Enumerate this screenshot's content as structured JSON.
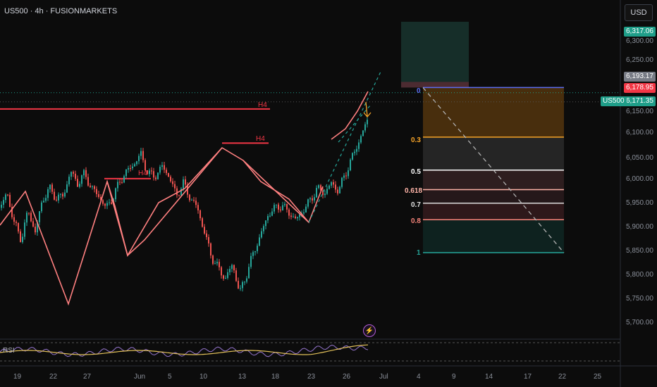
{
  "header": {
    "title": "US500 · 4h · FUSIONMARKETS"
  },
  "currency_button": {
    "label": "USD"
  },
  "price_tags": [
    {
      "label": "6,317.06",
      "bg": "#1f9e89"
    },
    {
      "label": "6,193.17",
      "bg": "#777b85"
    },
    {
      "label": "6,178.95",
      "bg": "#f23645"
    },
    {
      "label": "6,171.35",
      "bg": "#1f9e89"
    }
  ],
  "symbol_tag": {
    "label": "US500",
    "bg": "#1f9e89"
  },
  "y_axis": {
    "ticks": [
      "6,300.00",
      "6,250.00",
      "6,150.00",
      "6,100.00",
      "6,050.00",
      "6,000.00",
      "5,950.00",
      "5,900.00",
      "5,850.00",
      "5,800.00",
      "5,750.00",
      "5,700.00"
    ]
  },
  "x_axis": {
    "ticks": [
      "19",
      "22",
      "27",
      "Jun",
      "5",
      "10",
      "13",
      "18",
      "23",
      "26",
      "Jul",
      "4",
      "9",
      "14",
      "17",
      "22",
      "25"
    ]
  },
  "fib_levels": [
    {
      "label": "0",
      "color": "#5b6cf0"
    },
    {
      "label": "0.3",
      "color": "#f7a428"
    },
    {
      "label": "0.5",
      "color": "#ffffff"
    },
    {
      "label": "0.618",
      "color": "#ffb4a8"
    },
    {
      "label": "0.7",
      "color": "#e0e0e0"
    },
    {
      "label": "0.8",
      "color": "#f7847a"
    },
    {
      "label": "1",
      "color": "#26a69a"
    }
  ],
  "annotations": {
    "h4_labels": [
      "H4",
      "H4",
      "H4"
    ]
  },
  "rsi": {
    "label": "RSI"
  },
  "alert": {
    "icon": "lightning-icon"
  },
  "chart_data": {
    "type": "candlestick",
    "symbol": "US500",
    "timeframe": "4h",
    "ylim": [
      5680,
      6340
    ],
    "last_price": 6171.35,
    "price_path": [
      [
        0,
        5935
      ],
      [
        10,
        5965
      ],
      [
        20,
        5905
      ],
      [
        30,
        5870
      ],
      [
        40,
        5930
      ],
      [
        50,
        5885
      ],
      [
        60,
        5950
      ],
      [
        70,
        5975
      ],
      [
        80,
        5955
      ],
      [
        90,
        5960
      ],
      [
        100,
        6010
      ],
      [
        110,
        5985
      ],
      [
        120,
        6005
      ],
      [
        130,
        5975
      ],
      [
        140,
        5960
      ],
      [
        150,
        5935
      ],
      [
        160,
        5955
      ],
      [
        170,
        5990
      ],
      [
        180,
        6010
      ],
      [
        190,
        6025
      ],
      [
        200,
        6045
      ],
      [
        210,
        6005
      ],
      [
        220,
        6000
      ],
      [
        230,
        6020
      ],
      [
        240,
        6000
      ],
      [
        250,
        5960
      ],
      [
        260,
        5985
      ],
      [
        270,
        5955
      ],
      [
        280,
        5935
      ],
      [
        290,
        5885
      ],
      [
        300,
        5835
      ],
      [
        310,
        5810
      ],
      [
        320,
        5790
      ],
      [
        330,
        5820
      ],
      [
        340,
        5760
      ],
      [
        350,
        5800
      ],
      [
        360,
        5845
      ],
      [
        370,
        5880
      ],
      [
        380,
        5920
      ],
      [
        390,
        5935
      ],
      [
        400,
        5940
      ],
      [
        410,
        5925
      ],
      [
        420,
        5910
      ],
      [
        430,
        5930
      ],
      [
        440,
        5950
      ],
      [
        450,
        5975
      ],
      [
        460,
        5965
      ],
      [
        470,
        5985
      ],
      [
        480,
        5970
      ],
      [
        490,
        6005
      ],
      [
        500,
        6040
      ],
      [
        510,
        6075
      ],
      [
        520,
        6110
      ],
      [
        530,
        6145
      ],
      [
        540,
        6160
      ],
      [
        550,
        6171
      ]
    ],
    "h4_levels": [
      6138,
      6068,
      5995
    ],
    "fib_prices": {
      "0": 6182,
      "1": 5843
    },
    "projection_zone": [
      6182,
      6317
    ]
  }
}
